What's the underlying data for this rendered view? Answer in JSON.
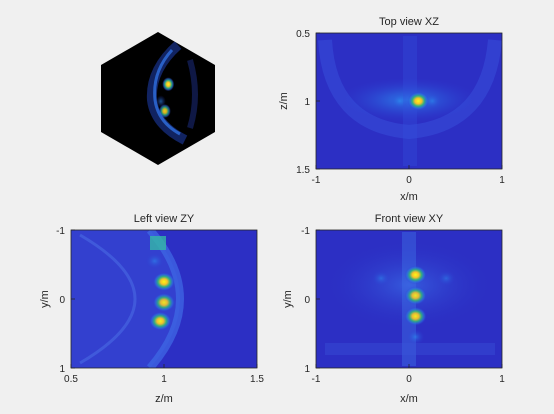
{
  "figure": {
    "background": "#f0f0f0",
    "colormap": "parula"
  },
  "chart_data": [
    {
      "type": "heatmap",
      "title": "",
      "description_icon": "hexagon-3d-view",
      "hotspots": [
        {
          "u": 0.18,
          "v": -0.25,
          "intensity": 1.0
        },
        {
          "u": 0.12,
          "v": 0.22,
          "intensity": 0.8
        },
        {
          "u": 0.05,
          "v": 0.05,
          "intensity": 0.5
        }
      ]
    },
    {
      "type": "heatmap",
      "title": "Top view XZ",
      "xlabel": "x/m",
      "ylabel": "z/m",
      "xlim": [
        -1,
        1
      ],
      "ylim": [
        0.5,
        1.5
      ],
      "y_reversed": true,
      "xticks": [
        -1,
        0,
        1
      ],
      "yticks": [
        0.5,
        1,
        1.5
      ],
      "hotspots": [
        {
          "x": 0.1,
          "y": 1.0,
          "intensity": 1.0
        },
        {
          "x": -0.1,
          "y": 1.0,
          "intensity": 0.55
        },
        {
          "x": 0.25,
          "y": 1.0,
          "intensity": 0.45
        }
      ]
    },
    {
      "type": "heatmap",
      "title": "Left view ZY",
      "xlabel": "z/m",
      "ylabel": "y/m",
      "xlim": [
        0.5,
        1.5
      ],
      "ylim": [
        -1,
        1
      ],
      "y_reversed": true,
      "xticks": [
        0.5,
        1,
        1.5
      ],
      "yticks": [
        -1,
        0,
        1
      ],
      "hotspots": [
        {
          "x": 1.0,
          "y": -0.25,
          "intensity": 1.0
        },
        {
          "x": 1.0,
          "y": 0.05,
          "intensity": 0.85
        },
        {
          "x": 0.98,
          "y": 0.32,
          "intensity": 0.95
        },
        {
          "x": 0.95,
          "y": -0.55,
          "intensity": 0.5
        }
      ]
    },
    {
      "type": "heatmap",
      "title": "Front view XY",
      "xlabel": "x/m",
      "ylabel": "y/m",
      "xlim": [
        -1,
        1
      ],
      "ylim": [
        -1,
        1
      ],
      "y_reversed": true,
      "xticks": [
        -1,
        0,
        1
      ],
      "yticks": [
        -1,
        0,
        1
      ],
      "hotspots": [
        {
          "x": 0.07,
          "y": -0.35,
          "intensity": 1.0
        },
        {
          "x": 0.07,
          "y": -0.05,
          "intensity": 0.85
        },
        {
          "x": 0.07,
          "y": 0.25,
          "intensity": 0.9
        },
        {
          "x": 0.07,
          "y": 0.55,
          "intensity": 0.6
        },
        {
          "x": -0.3,
          "y": -0.3,
          "intensity": 0.35
        },
        {
          "x": 0.4,
          "y": -0.3,
          "intensity": 0.3
        }
      ]
    }
  ]
}
